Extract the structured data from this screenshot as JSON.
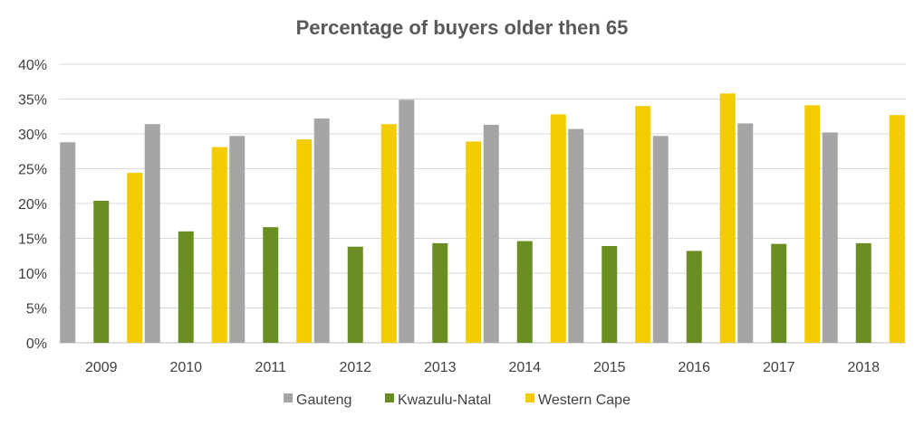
{
  "chart_data": {
    "type": "bar",
    "title": "Percentage of buyers older then 65",
    "xlabel": "",
    "ylabel": "",
    "categories": [
      "2009",
      "2010",
      "2011",
      "2012",
      "2013",
      "2014",
      "2015",
      "2016",
      "2017",
      "2018"
    ],
    "series": [
      {
        "name": "Gauteng",
        "color": "#A5A5A5",
        "values": [
          28.8,
          31.4,
          29.7,
          32.2,
          34.9,
          31.3,
          30.7,
          29.7,
          31.5,
          30.2
        ]
      },
      {
        "name": "Kwazulu-Natal",
        "color": "#6B8E23",
        "values": [
          20.4,
          16.0,
          16.6,
          13.8,
          14.3,
          14.6,
          13.9,
          13.2,
          14.2,
          14.3
        ]
      },
      {
        "name": "Western Cape",
        "color": "#F2CC00",
        "values": [
          24.4,
          28.1,
          29.2,
          31.4,
          28.9,
          32.8,
          34.0,
          35.8,
          34.1,
          32.7
        ]
      }
    ],
    "ylim": [
      0,
      40
    ],
    "yticks": [
      "0%",
      "5%",
      "10%",
      "15%",
      "20%",
      "25%",
      "30%",
      "35%",
      "40%"
    ],
    "grid": true,
    "legend": "bottom"
  }
}
